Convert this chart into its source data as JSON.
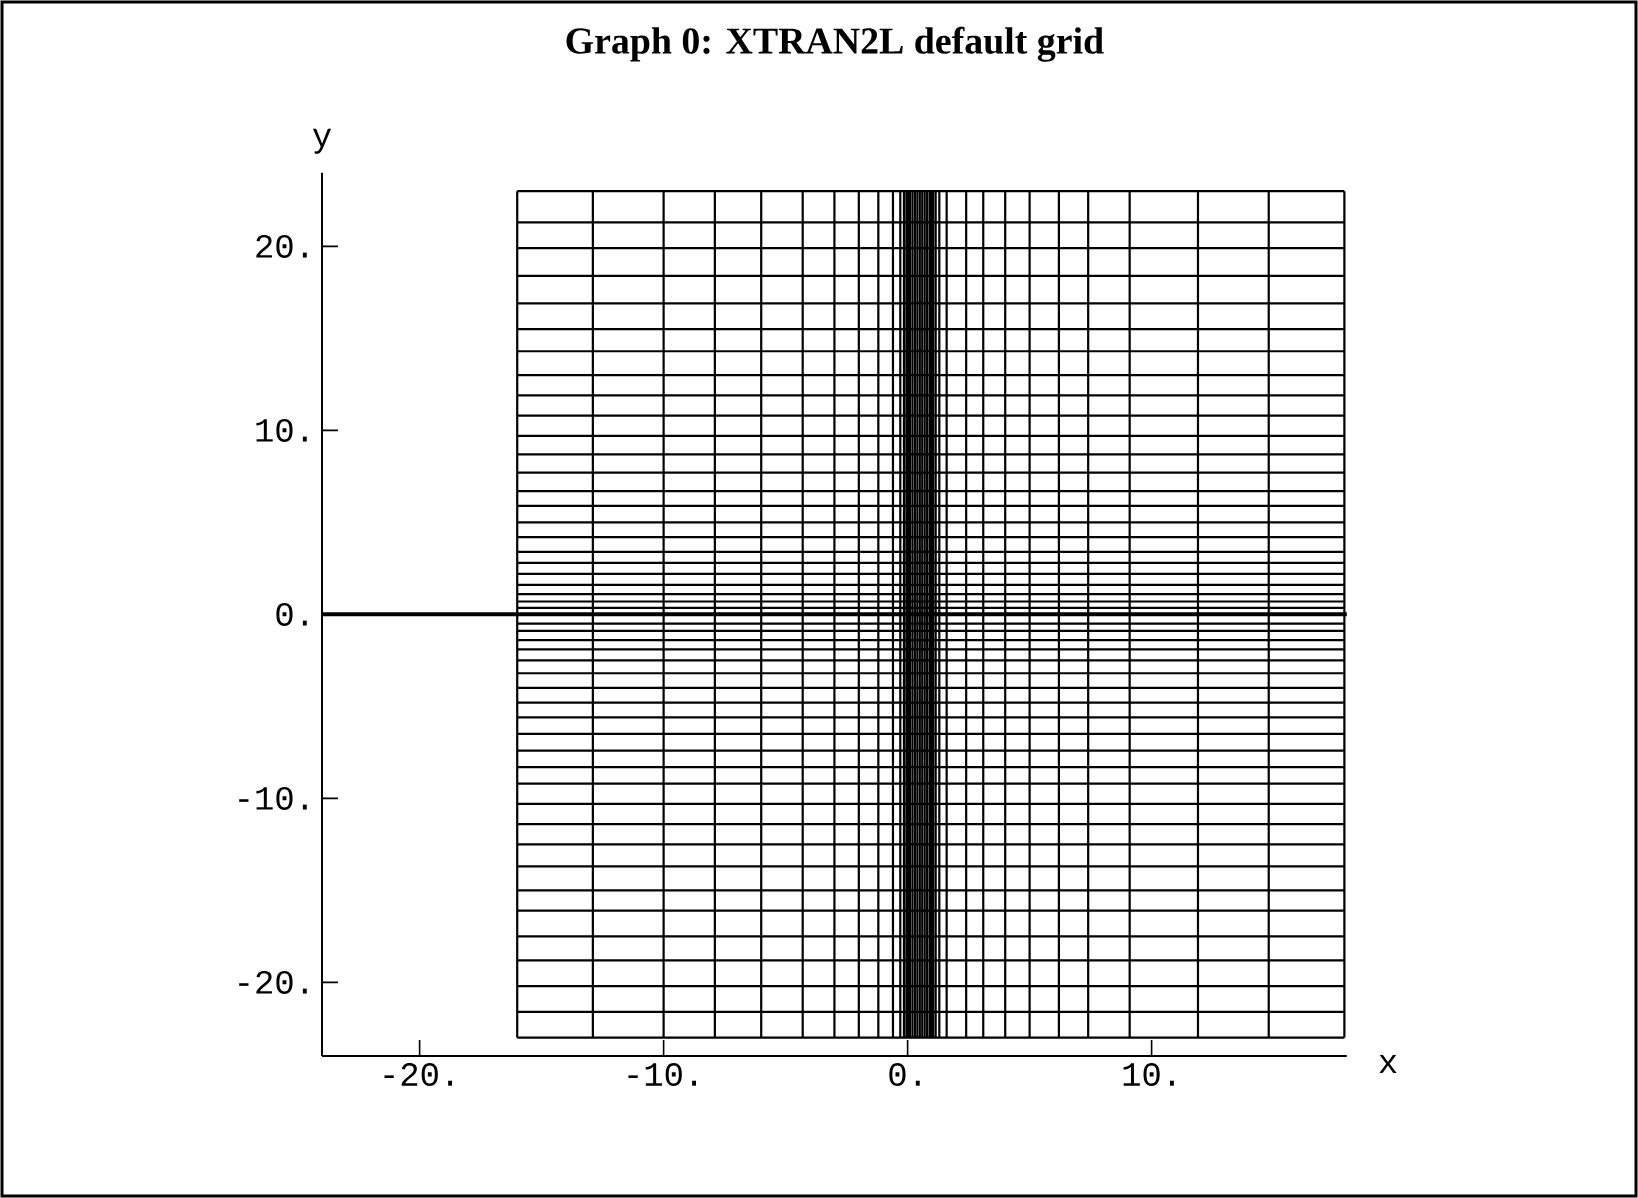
{
  "chart_data": {
    "type": "line",
    "title": "Graph 0: XTRAN2L default grid",
    "xlabel": "x",
    "ylabel": "y",
    "color": "#000000",
    "xlim": [
      -24,
      18
    ],
    "ylim": [
      -24,
      24
    ],
    "xticks": [
      {
        "value": -20,
        "label": "-20."
      },
      {
        "value": -10,
        "label": "-10."
      },
      {
        "value": 0,
        "label": "0."
      },
      {
        "value": 10,
        "label": "10."
      }
    ],
    "yticks": [
      {
        "value": -20,
        "label": "-20."
      },
      {
        "value": -10,
        "label": "-10."
      },
      {
        "value": 0,
        "label": "0."
      },
      {
        "value": 10,
        "label": "10."
      },
      {
        "value": 20,
        "label": "20."
      }
    ],
    "ref_lines": [
      {
        "axis": "y",
        "value": 0
      }
    ],
    "series": [
      {
        "x": [
          -16,
          -16
        ],
        "values": [
          -23,
          23
        ]
      },
      {
        "x": [
          -12.9,
          -12.9
        ],
        "values": [
          -23,
          23
        ]
      },
      {
        "x": [
          -10,
          -10
        ],
        "values": [
          -23,
          23
        ]
      },
      {
        "x": [
          -7.9,
          -7.9
        ],
        "values": [
          -23,
          23
        ]
      },
      {
        "x": [
          -6,
          -6
        ],
        "values": [
          -23,
          23
        ]
      },
      {
        "x": [
          -4.3,
          -4.3
        ],
        "values": [
          -23,
          23
        ]
      },
      {
        "x": [
          -3,
          -3
        ],
        "values": [
          -23,
          23
        ]
      },
      {
        "x": [
          -2,
          -2
        ],
        "values": [
          -23,
          23
        ]
      },
      {
        "x": [
          -1.2,
          -1.2
        ],
        "values": [
          -23,
          23
        ]
      },
      {
        "x": [
          -0.6,
          -0.6
        ],
        "values": [
          -23,
          23
        ]
      },
      {
        "x": [
          -0.3,
          -0.3
        ],
        "values": [
          -23,
          23
        ]
      },
      {
        "x": [
          -0.15,
          -0.15
        ],
        "values": [
          -23,
          23
        ]
      },
      {
        "x": [
          -0.05,
          -0.05
        ],
        "values": [
          -23,
          23
        ]
      },
      {
        "x": [
          0,
          0
        ],
        "values": [
          -23,
          23
        ]
      },
      {
        "x": [
          0.05,
          0.05
        ],
        "values": [
          -23,
          23
        ]
      },
      {
        "x": [
          0.1,
          0.1
        ],
        "values": [
          -23,
          23
        ]
      },
      {
        "x": [
          0.2,
          0.2
        ],
        "values": [
          -23,
          23
        ]
      },
      {
        "x": [
          0.3,
          0.3
        ],
        "values": [
          -23,
          23
        ]
      },
      {
        "x": [
          0.4,
          0.4
        ],
        "values": [
          -23,
          23
        ]
      },
      {
        "x": [
          0.5,
          0.5
        ],
        "values": [
          -23,
          23
        ]
      },
      {
        "x": [
          0.6,
          0.6
        ],
        "values": [
          -23,
          23
        ]
      },
      {
        "x": [
          0.7,
          0.7
        ],
        "values": [
          -23,
          23
        ]
      },
      {
        "x": [
          0.8,
          0.8
        ],
        "values": [
          -23,
          23
        ]
      },
      {
        "x": [
          0.9,
          0.9
        ],
        "values": [
          -23,
          23
        ]
      },
      {
        "x": [
          0.95,
          0.95
        ],
        "values": [
          -23,
          23
        ]
      },
      {
        "x": [
          1,
          1
        ],
        "values": [
          -23,
          23
        ]
      },
      {
        "x": [
          1.05,
          1.05
        ],
        "values": [
          -23,
          23
        ]
      },
      {
        "x": [
          1.15,
          1.15
        ],
        "values": [
          -23,
          23
        ]
      },
      {
        "x": [
          1.3,
          1.3
        ],
        "values": [
          -23,
          23
        ]
      },
      {
        "x": [
          1.6,
          1.6
        ],
        "values": [
          -23,
          23
        ]
      },
      {
        "x": [
          2.4,
          2.4
        ],
        "values": [
          -23,
          23
        ]
      },
      {
        "x": [
          3.1,
          3.1
        ],
        "values": [
          -23,
          23
        ]
      },
      {
        "x": [
          4,
          4
        ],
        "values": [
          -23,
          23
        ]
      },
      {
        "x": [
          5,
          5
        ],
        "values": [
          -23,
          23
        ]
      },
      {
        "x": [
          6.2,
          6.2
        ],
        "values": [
          -23,
          23
        ]
      },
      {
        "x": [
          7.4,
          7.4
        ],
        "values": [
          -23,
          23
        ]
      },
      {
        "x": [
          9.1,
          9.1
        ],
        "values": [
          -23,
          23
        ]
      },
      {
        "x": [
          11.9,
          11.9
        ],
        "values": [
          -23,
          23
        ]
      },
      {
        "x": [
          14.8,
          14.8
        ],
        "values": [
          -23,
          23
        ]
      },
      {
        "x": [
          17.9,
          17.9
        ],
        "values": [
          -23,
          23
        ]
      },
      {
        "x": [
          -16,
          17.9
        ],
        "values": [
          23,
          23
        ]
      },
      {
        "x": [
          -16,
          17.9
        ],
        "values": [
          21.3,
          21.3
        ]
      },
      {
        "x": [
          -16,
          17.9
        ],
        "values": [
          19.9,
          19.9
        ]
      },
      {
        "x": [
          -16,
          17.9
        ],
        "values": [
          18.4,
          18.4
        ]
      },
      {
        "x": [
          -16,
          17.9
        ],
        "values": [
          16.9,
          16.9
        ]
      },
      {
        "x": [
          -16,
          17.9
        ],
        "values": [
          15.5,
          15.5
        ]
      },
      {
        "x": [
          -16,
          17.9
        ],
        "values": [
          14.3,
          14.3
        ]
      },
      {
        "x": [
          -16,
          17.9
        ],
        "values": [
          13,
          13
        ]
      },
      {
        "x": [
          -16,
          17.9
        ],
        "values": [
          11.9,
          11.9
        ]
      },
      {
        "x": [
          -16,
          17.9
        ],
        "values": [
          10.8,
          10.8
        ]
      },
      {
        "x": [
          -16,
          17.9
        ],
        "values": [
          9.7,
          9.7
        ]
      },
      {
        "x": [
          -16,
          17.9
        ],
        "values": [
          8.7,
          8.7
        ]
      },
      {
        "x": [
          -16,
          17.9
        ],
        "values": [
          7.7,
          7.7
        ]
      },
      {
        "x": [
          -16,
          17.9
        ],
        "values": [
          6.7,
          6.7
        ]
      },
      {
        "x": [
          -16,
          17.9
        ],
        "values": [
          5.9,
          5.9
        ]
      },
      {
        "x": [
          -16,
          17.9
        ],
        "values": [
          5,
          5
        ]
      },
      {
        "x": [
          -16,
          17.9
        ],
        "values": [
          4.2,
          4.2
        ]
      },
      {
        "x": [
          -16,
          17.9
        ],
        "values": [
          3.4,
          3.4
        ]
      },
      {
        "x": [
          -16,
          17.9
        ],
        "values": [
          2.8,
          2.8
        ]
      },
      {
        "x": [
          -16,
          17.9
        ],
        "values": [
          2.2,
          2.2
        ]
      },
      {
        "x": [
          -16,
          17.9
        ],
        "values": [
          1.6,
          1.6
        ]
      },
      {
        "x": [
          -16,
          17.9
        ],
        "values": [
          1.1,
          1.1
        ]
      },
      {
        "x": [
          -16,
          17.9
        ],
        "values": [
          0.7,
          0.7
        ]
      },
      {
        "x": [
          -16,
          17.9
        ],
        "values": [
          0.35,
          0.35
        ]
      },
      {
        "x": [
          -16,
          17.9
        ],
        "values": [
          -0.5,
          -0.5
        ]
      },
      {
        "x": [
          -16,
          17.9
        ],
        "values": [
          -0.9,
          -0.9
        ]
      },
      {
        "x": [
          -16,
          17.9
        ],
        "values": [
          -1.4,
          -1.4
        ]
      },
      {
        "x": [
          -16,
          17.9
        ],
        "values": [
          -1.9,
          -1.9
        ]
      },
      {
        "x": [
          -16,
          17.9
        ],
        "values": [
          -2.5,
          -2.5
        ]
      },
      {
        "x": [
          -16,
          17.9
        ],
        "values": [
          -3.2,
          -3.2
        ]
      },
      {
        "x": [
          -16,
          17.9
        ],
        "values": [
          -4,
          -4
        ]
      },
      {
        "x": [
          -16,
          17.9
        ],
        "values": [
          -4.8,
          -4.8
        ]
      },
      {
        "x": [
          -16,
          17.9
        ],
        "values": [
          -5.6,
          -5.6
        ]
      },
      {
        "x": [
          -16,
          17.9
        ],
        "values": [
          -6.5,
          -6.5
        ]
      },
      {
        "x": [
          -16,
          17.9
        ],
        "values": [
          -7.4,
          -7.4
        ]
      },
      {
        "x": [
          -16,
          17.9
        ],
        "values": [
          -8.3,
          -8.3
        ]
      },
      {
        "x": [
          -16,
          17.9
        ],
        "values": [
          -9.2,
          -9.2
        ]
      },
      {
        "x": [
          -16,
          17.9
        ],
        "values": [
          -10.3,
          -10.3
        ]
      },
      {
        "x": [
          -16,
          17.9
        ],
        "values": [
          -11.4,
          -11.4
        ]
      },
      {
        "x": [
          -16,
          17.9
        ],
        "values": [
          -12.5,
          -12.5
        ]
      },
      {
        "x": [
          -16,
          17.9
        ],
        "values": [
          -13.7,
          -13.7
        ]
      },
      {
        "x": [
          -16,
          17.9
        ],
        "values": [
          -15,
          -15
        ]
      },
      {
        "x": [
          -16,
          17.9
        ],
        "values": [
          -16.1,
          -16.1
        ]
      },
      {
        "x": [
          -16,
          17.9
        ],
        "values": [
          -17.5,
          -17.5
        ]
      },
      {
        "x": [
          -16,
          17.9
        ],
        "values": [
          -18.8,
          -18.8
        ]
      },
      {
        "x": [
          -16,
          17.9
        ],
        "values": [
          -20.2,
          -20.2
        ]
      },
      {
        "x": [
          -16,
          17.9
        ],
        "values": [
          -21.6,
          -21.6
        ]
      },
      {
        "x": [
          -16,
          17.9
        ],
        "values": [
          -23,
          -23
        ]
      }
    ]
  }
}
